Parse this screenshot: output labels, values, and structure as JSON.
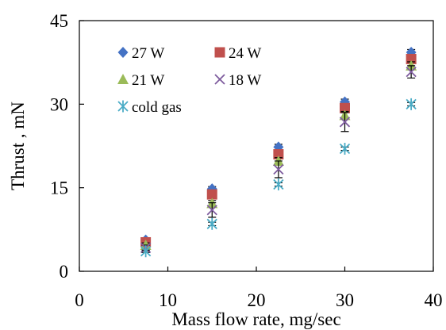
{
  "chart_data": {
    "type": "scatter",
    "title": "",
    "xlabel": "Mass flow rate, mg/sec",
    "ylabel": "Thrust , mN",
    "xlim": [
      0,
      40
    ],
    "ylim": [
      0,
      45
    ],
    "xticks": [
      "0",
      "10",
      "20",
      "30",
      "40"
    ],
    "yticks": [
      "0",
      "15",
      "30",
      "45"
    ],
    "grid": false,
    "legend_position": "top-left, inside plot, two columns",
    "x": [
      7.5,
      15,
      22.5,
      30,
      37.5
    ],
    "series": [
      {
        "name": "27 W",
        "marker": "diamond",
        "color": "#4472C4",
        "values": [
          5.6,
          14.8,
          22.3,
          30.4,
          39.3
        ],
        "error": [
          0.3,
          0.4,
          0.5,
          0.5,
          0.5
        ]
      },
      {
        "name": "24 W",
        "marker": "square",
        "color": "#C0504D",
        "values": [
          5.2,
          13.8,
          21.0,
          29.3,
          38.1
        ],
        "error": [
          0.3,
          0.4,
          0.5,
          0.6,
          0.6
        ]
      },
      {
        "name": "21 W",
        "marker": "triangle",
        "color": "#9BBB59",
        "values": [
          4.7,
          12.2,
          19.8,
          28.0,
          36.9
        ],
        "error": [
          0.4,
          0.5,
          0.6,
          0.7,
          0.7
        ]
      },
      {
        "name": "18 W",
        "marker": "x",
        "color": "#7E5C9E",
        "values": [
          4.2,
          11.0,
          18.3,
          26.8,
          35.8
        ],
        "error": [
          0.5,
          1.3,
          1.5,
          1.7,
          1.1
        ]
      },
      {
        "name": "cold gas",
        "marker": "asterisk",
        "color": "#4BACC6",
        "values": [
          3.6,
          8.5,
          15.6,
          22.0,
          30.0
        ],
        "error": [
          0.2,
          0.3,
          0.3,
          0.3,
          0.3
        ]
      }
    ]
  }
}
